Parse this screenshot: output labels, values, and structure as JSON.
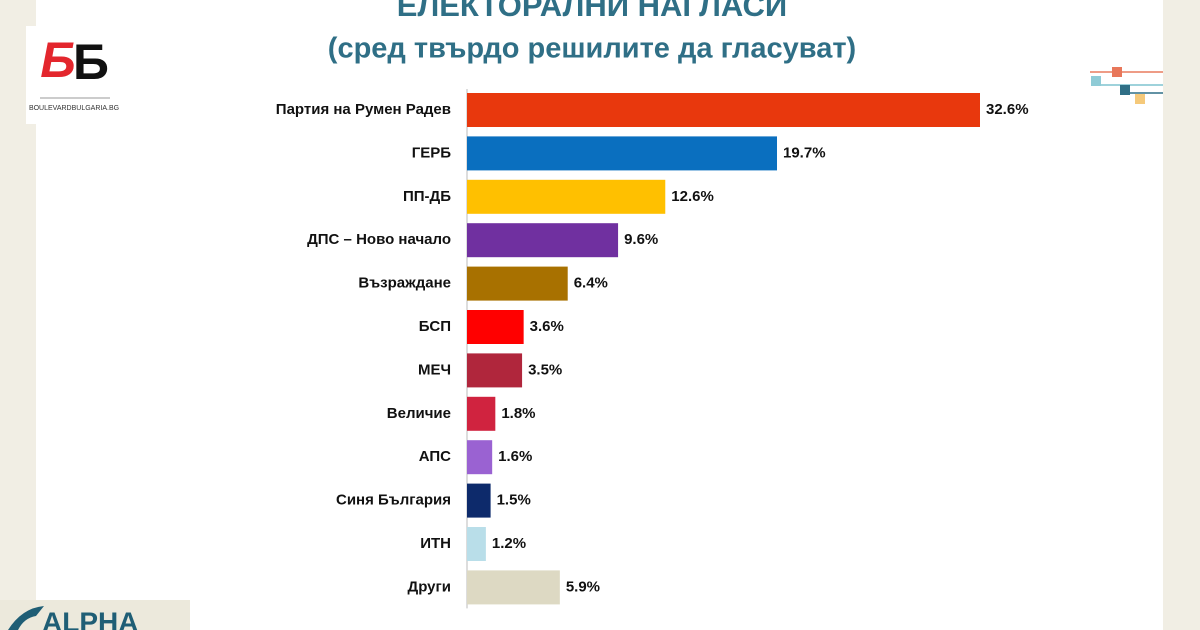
{
  "chart_data": {
    "type": "bar",
    "orientation": "horizontal",
    "title": "ЕЛЕКТОРАЛНИ НАГЛАСИ",
    "subtitle": "(сред твърдо решилите да гласуват)",
    "categories": [
      "Партия на Румен Радев",
      "ГЕРБ",
      "ПП-ДБ",
      "ДПС – Ново начало",
      "Възраждане",
      "БСП",
      "МЕЧ",
      "Величие",
      "АПС",
      "Синя България",
      "ИТН",
      "Други"
    ],
    "values": [
      32.6,
      19.7,
      12.6,
      9.6,
      6.4,
      3.6,
      3.5,
      1.8,
      1.6,
      1.5,
      1.2,
      5.9
    ],
    "value_labels": [
      "32.6%",
      "19.7%",
      "12.6%",
      "9.6%",
      "6.4%",
      "3.6%",
      "3.5%",
      "1.8%",
      "1.6%",
      "1.5%",
      "1.2%",
      "5.9%"
    ],
    "colors": [
      "#e8380d",
      "#0a6fbf",
      "#ffc000",
      "#7030a0",
      "#a87100",
      "#ff0000",
      "#b0263c",
      "#d0233f",
      "#9a62d2",
      "#0d2a6b",
      "#b9dee9",
      "#ddd9c3"
    ]
  },
  "logo": {
    "letters": [
      "Б",
      "Б"
    ],
    "site": "BOULEVARDBULGARIA.BG"
  },
  "footer": {
    "brand": "ALPHA"
  }
}
